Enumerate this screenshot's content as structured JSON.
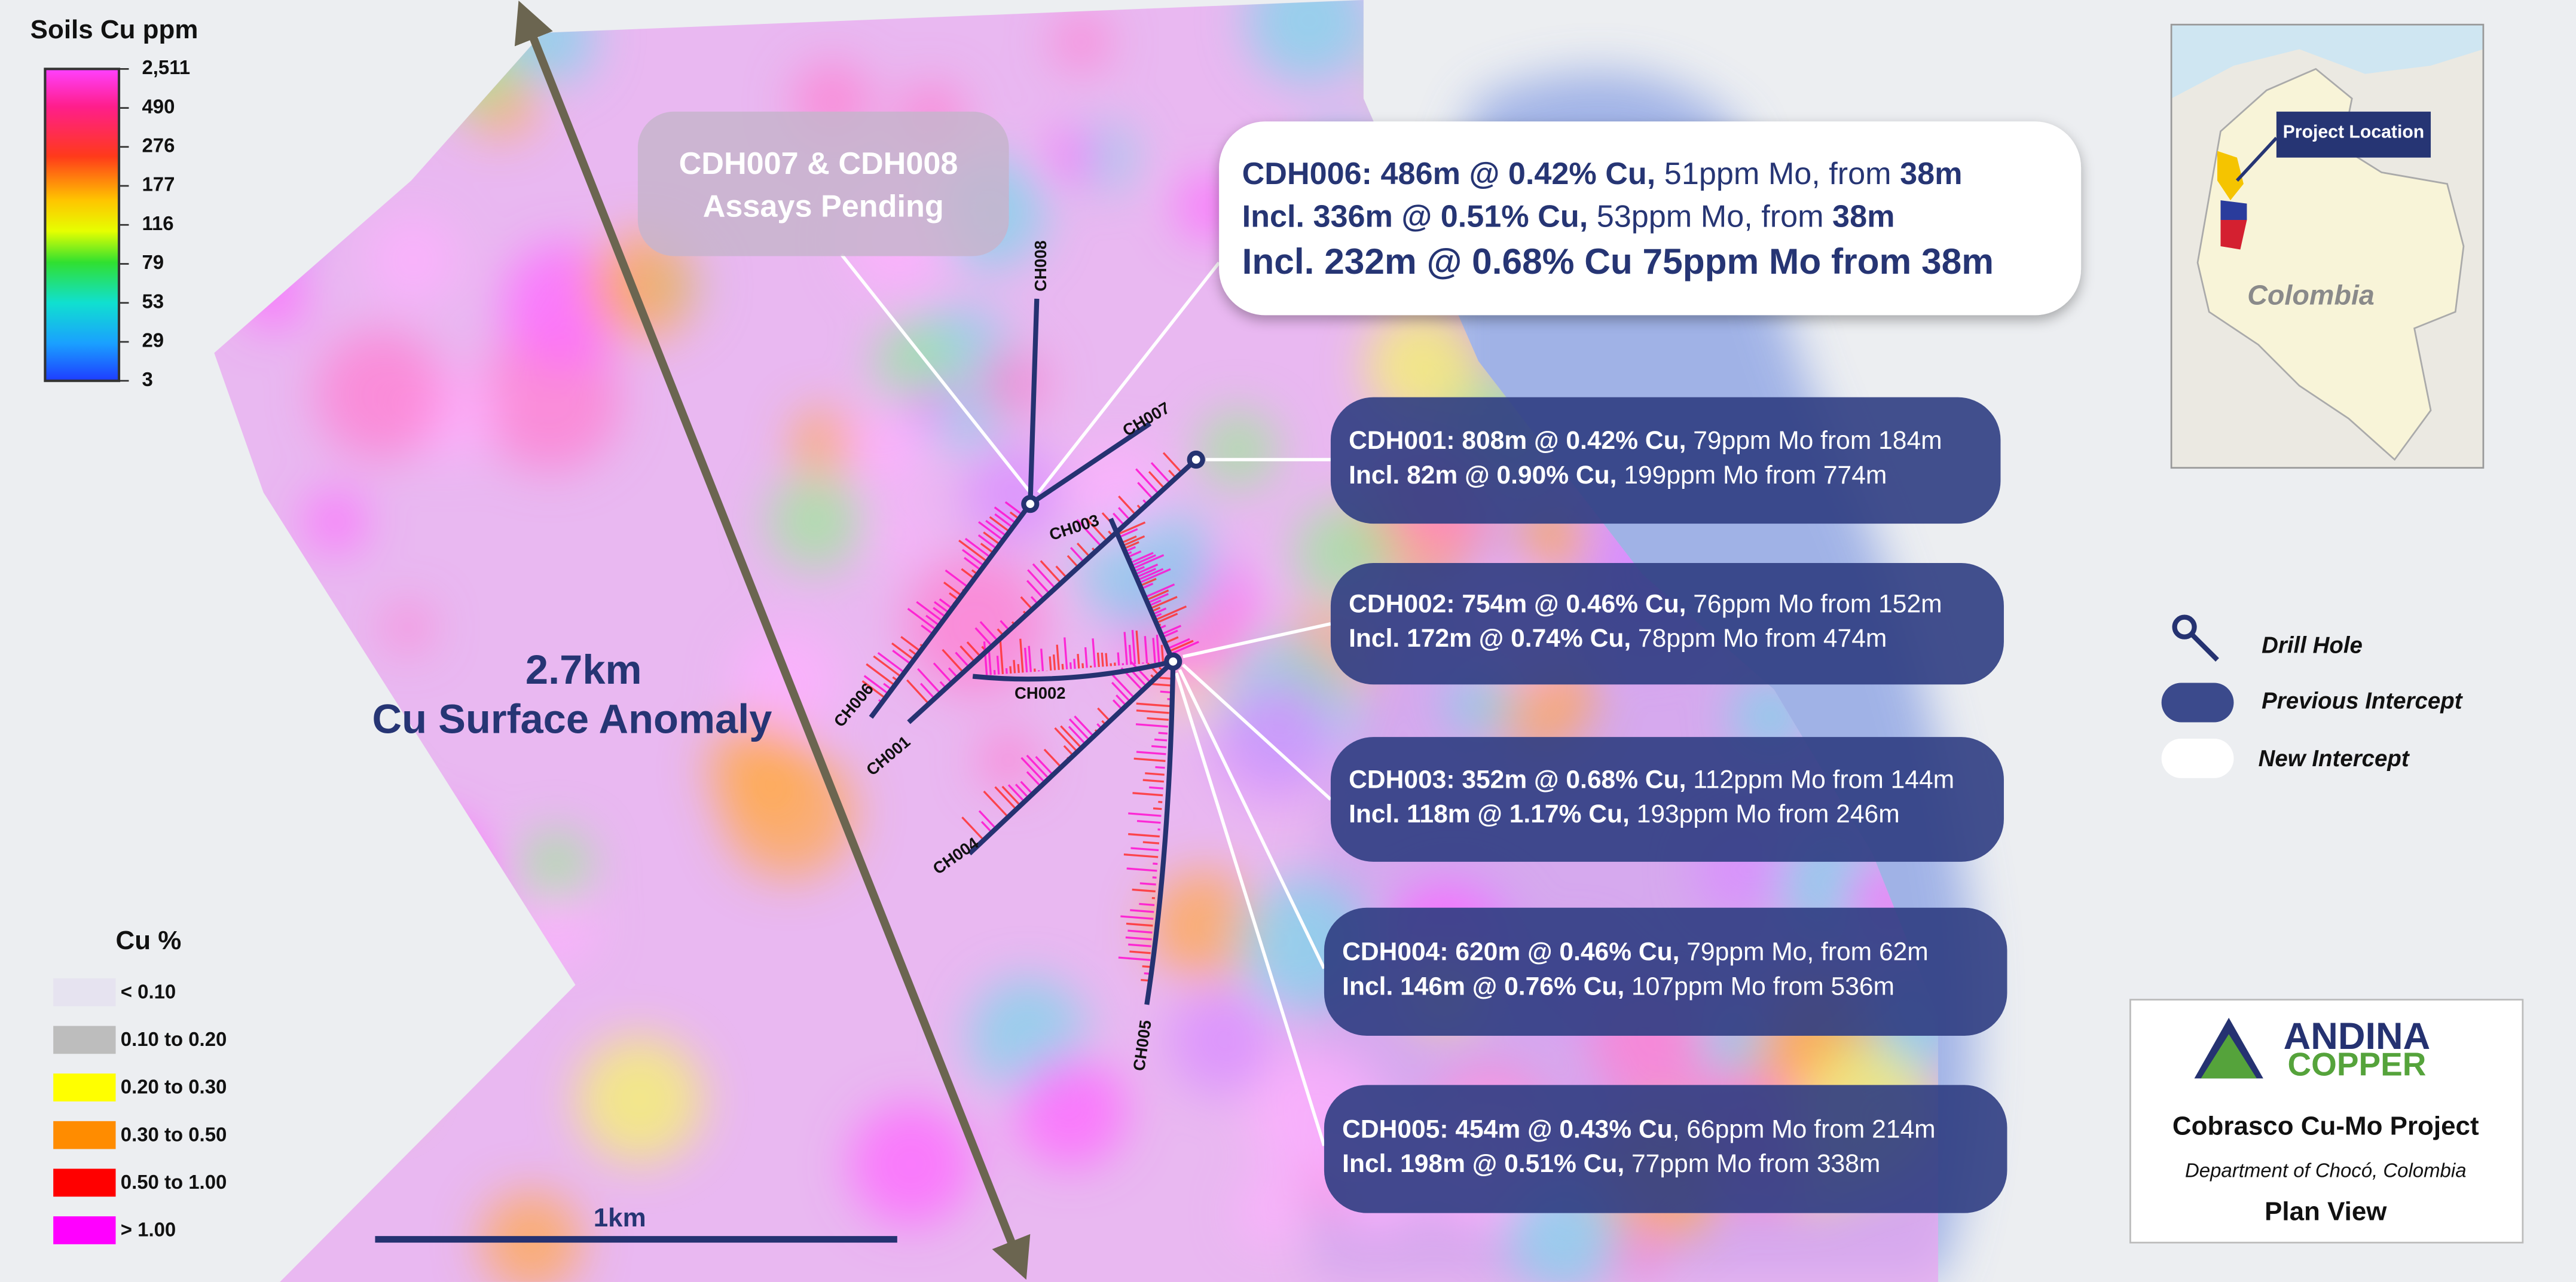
{
  "soils_legend": {
    "title": "Soils Cu ppm",
    "labels": [
      "2,511",
      "490",
      "276",
      "177",
      "116",
      "79",
      "53",
      "29",
      "3"
    ]
  },
  "cu_legend": {
    "title": "Cu %",
    "items": [
      {
        "label": "< 0.10",
        "color": "#e6e3f0"
      },
      {
        "label": "0.10 to 0.20",
        "color": "#bdbdbd"
      },
      {
        "label": "0.20 to 0.30",
        "color": "#ffff00"
      },
      {
        "label": "0.30 to 0.50",
        "color": "#ff8c00"
      },
      {
        "label": "0.50 to 1.00",
        "color": "#ff0000"
      },
      {
        "label": "> 1.00",
        "color": "#ff00ff"
      }
    ]
  },
  "pending_callout": {
    "lines": [
      "CDH007 & CDH008",
      "Assays Pending"
    ]
  },
  "new_intercept": {
    "lines": [
      [
        {
          "text": "CDH006: 486m @ 0.42% Cu,",
          "bold": true
        },
        {
          "text": " 51ppm Mo, from ",
          "bold": false
        },
        {
          "text": "38m",
          "bold": true
        }
      ],
      [
        {
          "text": "Incl. 336m @ 0.51% Cu,",
          "bold": true
        },
        {
          "text": " 53ppm Mo, from ",
          "bold": false
        },
        {
          "text": "38m",
          "bold": true
        }
      ],
      [
        {
          "text": "Incl. 232m @ 0.68% Cu 75ppm Mo from 38m",
          "bold": true
        }
      ]
    ]
  },
  "previous_intercepts": [
    {
      "lines": [
        [
          {
            "text": "CDH001: 808m @ 0.42% Cu,",
            "bold": true
          },
          {
            "text": " 79ppm Mo from 184m",
            "bold": false
          }
        ],
        [
          {
            "text": "Incl. 82m @ 0.90% Cu,",
            "bold": true
          },
          {
            "text": " 199ppm Mo from 774m",
            "bold": false
          }
        ]
      ]
    },
    {
      "lines": [
        [
          {
            "text": "CDH002: 754m @ 0.46% Cu,",
            "bold": true
          },
          {
            "text": " 76ppm Mo from 152m",
            "bold": false
          }
        ],
        [
          {
            "text": "Incl. 172m @ 0.74% Cu,",
            "bold": true
          },
          {
            "text": " 78ppm Mo from 474m",
            "bold": false
          }
        ]
      ]
    },
    {
      "lines": [
        [
          {
            "text": "CDH003: 352m @ 0.68% Cu,",
            "bold": true
          },
          {
            "text": " 112ppm Mo from 144m",
            "bold": false
          }
        ],
        [
          {
            "text": "Incl. 118m @ 1.17% Cu,",
            "bold": true
          },
          {
            "text": " 193ppm Mo from 246m",
            "bold": false
          }
        ]
      ]
    },
    {
      "lines": [
        [
          {
            "text": "CDH004: 620m @ 0.46% Cu,",
            "bold": true
          },
          {
            "text": " 79ppm Mo, from 62m",
            "bold": false
          }
        ],
        [
          {
            "text": "Incl. 146m @ 0.76% Cu,",
            "bold": true
          },
          {
            "text": " 107ppm Mo from 536m",
            "bold": false
          }
        ]
      ]
    },
    {
      "lines": [
        [
          {
            "text": "CDH005: 454m @ 0.43% Cu",
            "bold": true
          },
          {
            "text": ", 66ppm Mo from 214m",
            "bold": false
          }
        ],
        [
          {
            "text": "Incl. 198m @ 0.51% Cu,",
            "bold": true
          },
          {
            "text": " 77ppm Mo from 338m",
            "bold": false
          }
        ]
      ]
    }
  ],
  "drill_holes": [
    "CH008",
    "CH007",
    "CH003",
    "CH006",
    "CH001",
    "CH002",
    "CH004",
    "CH005"
  ],
  "anomaly": {
    "length": "2.7km",
    "label": "Cu Surface Anomaly"
  },
  "scale_bar": "1km",
  "map_legend": [
    "Drill Hole",
    "Previous Intercept",
    "New Intercept"
  ],
  "inset": {
    "marker": "Project Location",
    "country": "Colombia"
  },
  "logo": {
    "name": [
      "ANDINA",
      "COPPER"
    ],
    "project": "Cobrasco Cu-Mo Project",
    "location": "Department of Chocó, Colombia",
    "view": "Plan View"
  }
}
